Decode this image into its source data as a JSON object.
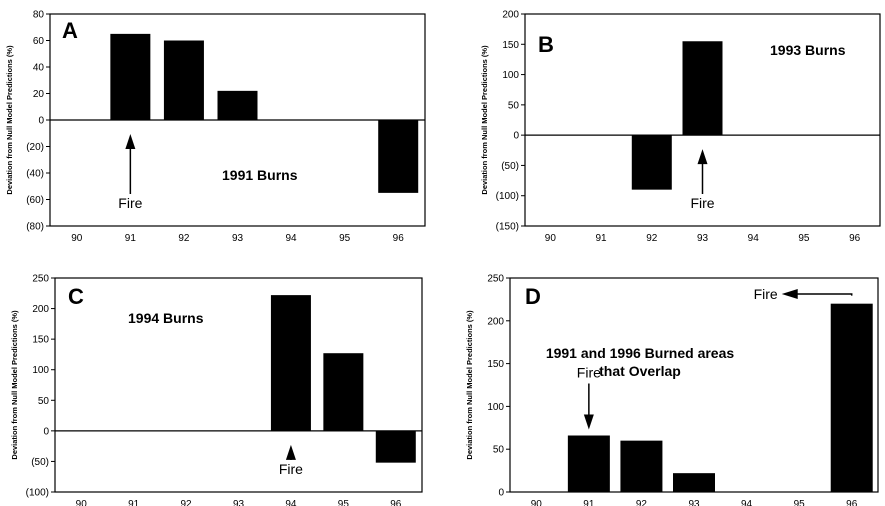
{
  "chart_data": [
    {
      "panel": "A",
      "type": "bar",
      "title": "1991 Burns",
      "ylabel": "Deviation from Null Model Predictions (%)",
      "categories": [
        "90",
        "91",
        "92",
        "93",
        "94",
        "95",
        "96"
      ],
      "values": [
        0,
        65,
        60,
        22,
        0,
        0,
        -55
      ],
      "ylim": [
        -80,
        80
      ],
      "yticks": [
        -80,
        -60,
        -40,
        -20,
        0,
        20,
        40,
        60,
        80
      ],
      "ytick_labels": [
        "(80)",
        "(60)",
        "(40)",
        "(20)",
        "0",
        "20",
        "40",
        "60",
        "80"
      ],
      "annotation": {
        "text": "Fire",
        "category": "91",
        "arrow": "up"
      },
      "grid": false,
      "legend": "none"
    },
    {
      "panel": "B",
      "type": "bar",
      "title": "1993 Burns",
      "ylabel": "Deviation from Null Model Predictions (%)",
      "categories": [
        "90",
        "91",
        "92",
        "93",
        "94",
        "95",
        "96"
      ],
      "values": [
        0,
        0,
        -90,
        155,
        0,
        0,
        0
      ],
      "ylim": [
        -150,
        200
      ],
      "yticks": [
        -150,
        -100,
        -50,
        0,
        50,
        100,
        150,
        200
      ],
      "ytick_labels": [
        "(150)",
        "(100)",
        "(50)",
        "0",
        "50",
        "100",
        "150",
        "200"
      ],
      "annotation": {
        "text": "Fire",
        "category": "93",
        "arrow": "up"
      },
      "grid": false,
      "legend": "none"
    },
    {
      "panel": "C",
      "type": "bar",
      "title": "1994 Burns",
      "ylabel": "Deviation from Null Model Predictions (%)",
      "categories": [
        "90",
        "91",
        "92",
        "93",
        "94",
        "95",
        "96"
      ],
      "values": [
        0,
        0,
        0,
        0,
        222,
        127,
        -52
      ],
      "ylim": [
        -100,
        250
      ],
      "yticks": [
        -100,
        -50,
        0,
        50,
        100,
        150,
        200,
        250
      ],
      "ytick_labels": [
        "(100)",
        "(50)",
        "0",
        "50",
        "100",
        "150",
        "200",
        "250"
      ],
      "annotation": {
        "text": "Fire",
        "category": "94",
        "arrow": "up"
      },
      "grid": false,
      "legend": "none"
    },
    {
      "panel": "D",
      "type": "bar",
      "title": "1991 and 1996 Burned areas that Overlap",
      "title_lines": [
        "1991 and 1996 Burned areas",
        "that Overlap"
      ],
      "ylabel": "Deviation from Null Model Predictions (%)",
      "categories": [
        "90",
        "91",
        "92",
        "93",
        "94",
        "95",
        "96"
      ],
      "values": [
        0,
        66,
        60,
        22,
        0,
        0,
        220
      ],
      "ylim": [
        0,
        250
      ],
      "yticks": [
        0,
        50,
        100,
        150,
        200,
        250
      ],
      "ytick_labels": [
        "0",
        "50",
        "100",
        "150",
        "200",
        "250"
      ],
      "annotations": [
        {
          "text": "Fire",
          "category": "91",
          "arrow": "down"
        },
        {
          "text": "Fire",
          "category": "96",
          "arrow": "left-elbow"
        }
      ],
      "grid": false,
      "legend": "none"
    }
  ]
}
